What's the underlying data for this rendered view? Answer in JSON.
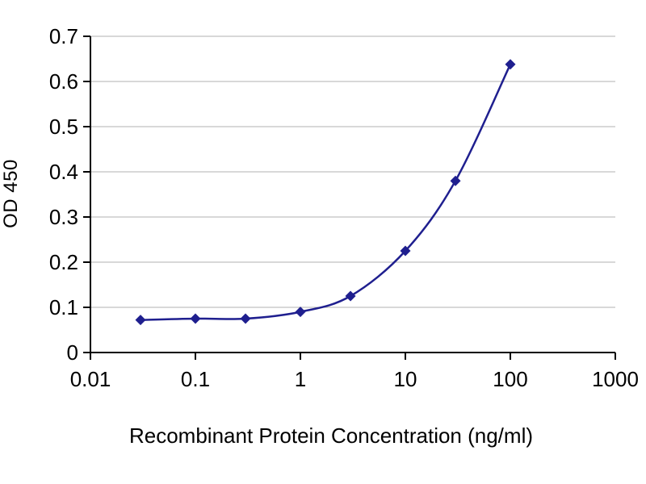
{
  "chart_data": {
    "type": "line",
    "title": "",
    "xlabel": "Recombinant Protein Concentration (ng/ml)",
    "ylabel": "OD 450",
    "x_scale": "log",
    "xlim": [
      0.01,
      1000
    ],
    "ylim": [
      0,
      0.7
    ],
    "x_ticks": [
      0.01,
      0.1,
      1,
      10,
      100,
      1000
    ],
    "x_tick_labels": [
      "0.01",
      "0.1",
      "1",
      "10",
      "100",
      "1000"
    ],
    "y_ticks": [
      0,
      0.1,
      0.2,
      0.3,
      0.4,
      0.5,
      0.6,
      0.7
    ],
    "y_tick_labels": [
      "0",
      "0.1",
      "0.2",
      "0.3",
      "0.4",
      "0.5",
      "0.6",
      "0.7"
    ],
    "grid": "horizontal",
    "legend": "none",
    "series": [
      {
        "name": "OD 450",
        "marker": "diamond",
        "x": [
          0.03,
          0.1,
          0.3,
          1,
          3,
          10,
          30,
          100
        ],
        "y": [
          0.072,
          0.075,
          0.075,
          0.09,
          0.125,
          0.225,
          0.38,
          0.638
        ]
      }
    ],
    "colors": {
      "line": "#1f1f8f",
      "marker": "#1f1f8f",
      "grid": "#b0b0b0",
      "axis": "#000000",
      "text": "#000000",
      "background": "#ffffff"
    }
  }
}
